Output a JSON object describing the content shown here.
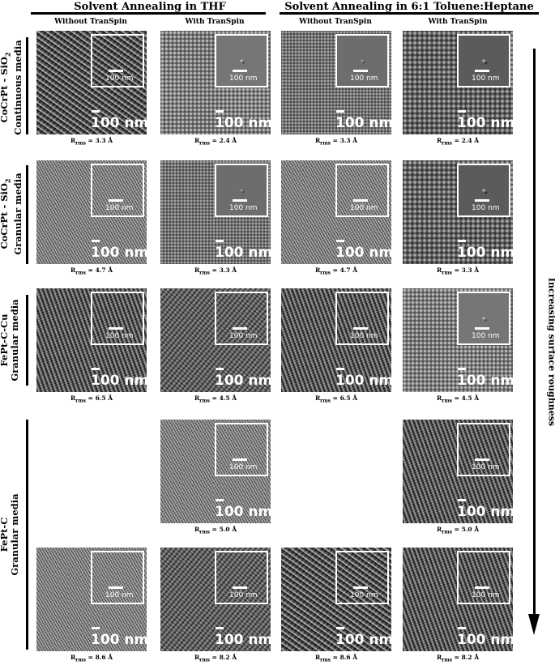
{
  "groups": [
    {
      "title": "Solvent Annealing in THF"
    },
    {
      "title": "Solvent Annealing in 6:1 Toluene:Heptane"
    }
  ],
  "columns": [
    "Without TranSpin",
    "With TranSpin",
    "Without TranSpin",
    "With TranSpin"
  ],
  "rows": [
    {
      "label_line1": "CoCrPt - SiO",
      "label_sub": "2",
      "label_line2": "Continuous media"
    },
    {
      "label_line1": "CoCrPt - SiO",
      "label_sub": "2",
      "label_line2": "Granular media"
    },
    {
      "label_line1": "FePt-C-Cu",
      "label_sub": "",
      "label_line2": "Granular media"
    },
    {
      "label_line1": "FePt-C",
      "label_sub": "",
      "label_line2": "Granular media"
    }
  ],
  "scale_label": "100 nm",
  "inset_scale_label": "100 nm",
  "rms_prefix": "R",
  "rms_sub": "rms",
  "rms_unit": "Å",
  "images": [
    {
      "row": 0,
      "col": 0,
      "rms": "3.3",
      "pattern": 0
    },
    {
      "row": 0,
      "col": 1,
      "rms": "2.4",
      "pattern": 1
    },
    {
      "row": 0,
      "col": 2,
      "rms": "3.3",
      "pattern": 2
    },
    {
      "row": 0,
      "col": 3,
      "rms": "2.4",
      "pattern": 3
    },
    {
      "row": 1,
      "col": 0,
      "rms": "4.7",
      "pattern": 6
    },
    {
      "row": 1,
      "col": 1,
      "rms": "3.3",
      "pattern": 2
    },
    {
      "row": 1,
      "col": 2,
      "rms": "4.7",
      "pattern": 6
    },
    {
      "row": 1,
      "col": 3,
      "rms": "3.3",
      "pattern": 3
    },
    {
      "row": 2,
      "col": 0,
      "rms": "6.5",
      "pattern": 4
    },
    {
      "row": 2,
      "col": 1,
      "rms": "4.5",
      "pattern": 5
    },
    {
      "row": 2,
      "col": 2,
      "rms": "6.5",
      "pattern": 4
    },
    {
      "row": 2,
      "col": 3,
      "rms": "4.5",
      "pattern": 1
    },
    {
      "row": 3,
      "col": 1,
      "rms": "5.0",
      "pattern": 6
    },
    {
      "row": 3,
      "col": 3,
      "rms": "5.0",
      "pattern": 4
    },
    {
      "row": 4,
      "col": 0,
      "rms": "8.6",
      "pattern": 6
    },
    {
      "row": 4,
      "col": 1,
      "rms": "8.2",
      "pattern": 5
    },
    {
      "row": 4,
      "col": 2,
      "rms": "8.6",
      "pattern": 0
    },
    {
      "row": 4,
      "col": 3,
      "rms": "8.2",
      "pattern": 4
    }
  ],
  "arrow_label": "Increasing surface roughness"
}
